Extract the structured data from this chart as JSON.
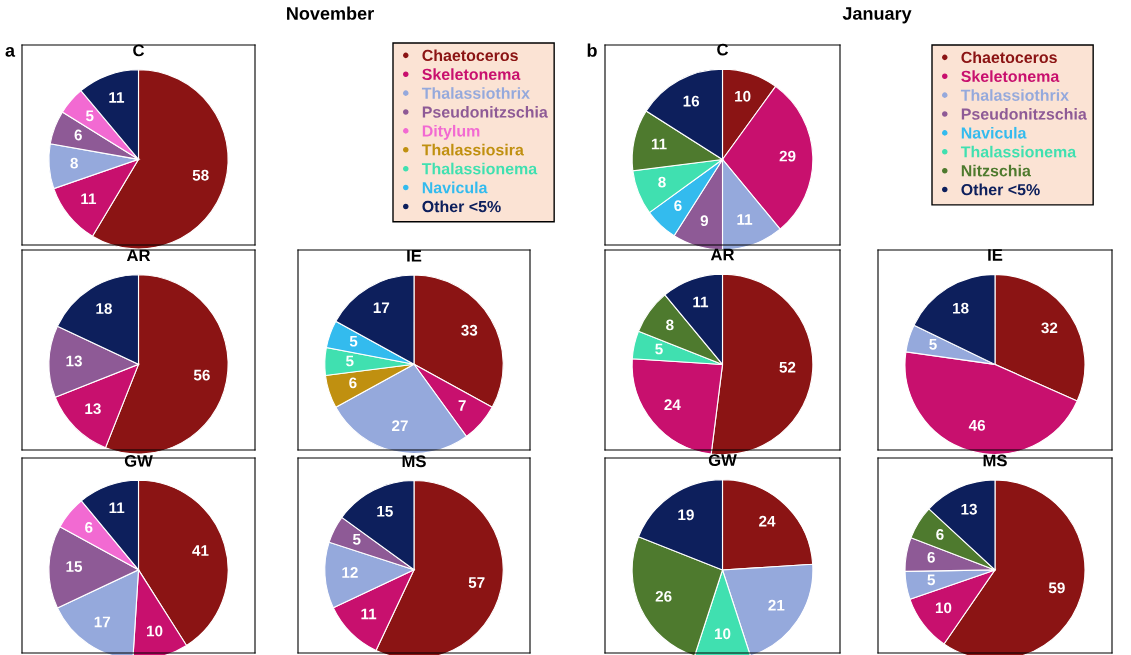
{
  "chart_data": [
    {
      "type": "pie",
      "title": "C",
      "annotations": [
        "a",
        "November"
      ],
      "legend": "right",
      "data_labels": true,
      "categories": [
        "Chaetoceros",
        "Skeletonema",
        "Thalassiothrix",
        "Pseudonitzschia",
        "Ditylum",
        "Thalassiosira",
        "Thalassionema",
        "Navicula",
        "Other <5%"
      ],
      "values": [
        58,
        11,
        8,
        6,
        5,
        null,
        null,
        null,
        11
      ],
      "colors": [
        "#8b1414",
        "#c8106e",
        "#95a9dc",
        "#8e5a96",
        "#f26ad2",
        "#c09010",
        "#40e0b0",
        "#33bbee",
        "#0d1f5c"
      ]
    },
    {
      "type": "pie",
      "title": "AR",
      "data_labels": true,
      "categories": [
        null,
        null,
        null,
        null
      ],
      "values": [
        56,
        13,
        13,
        18
      ],
      "colors": [
        "#8b1414",
        "#c8106e",
        "#8e5a96",
        "#0d1f5c"
      ]
    },
    {
      "type": "pie",
      "title": "IE",
      "data_labels": true,
      "categories": [
        null,
        null,
        null,
        null,
        null,
        null,
        null
      ],
      "values": [
        33,
        7,
        27,
        6,
        5,
        5,
        17
      ],
      "colors": [
        "#8b1414",
        "#c8106e",
        "#95a9dc",
        "#c09010",
        "#40e0b0",
        "#33bbee",
        "#0d1f5c"
      ]
    },
    {
      "type": "pie",
      "title": "GW",
      "data_labels": true,
      "categories": [
        null,
        null,
        null,
        null,
        null,
        null
      ],
      "values": [
        41,
        10,
        17,
        15,
        6,
        11
      ],
      "colors": [
        "#8b1414",
        "#c8106e",
        "#95a9dc",
        "#8e5a96",
        "#f26ad2",
        "#0d1f5c"
      ]
    },
    {
      "type": "pie",
      "title": "MS",
      "data_labels": true,
      "categories": [
        null,
        null,
        null,
        null,
        null
      ],
      "values": [
        57,
        11,
        12,
        5,
        15
      ],
      "colors": [
        "#8b1414",
        "#c8106e",
        "#95a9dc",
        "#8e5a96",
        "#0d1f5c"
      ]
    },
    {
      "type": "pie",
      "title": "C",
      "annotations": [
        "b",
        "January"
      ],
      "legend": "right",
      "data_labels": true,
      "categories": [
        "Chaetoceros",
        "Skeletonema",
        "Thalassiothrix",
        "Pseudonitzschia",
        "Navicula",
        "Thalassionema",
        "Nitzschia",
        "Other <5%"
      ],
      "values": [
        10,
        29,
        11,
        9,
        6,
        8,
        11,
        16
      ],
      "colors": [
        "#8b1414",
        "#c8106e",
        "#95a9dc",
        "#8e5a96",
        "#33bbee",
        "#40e0b0",
        "#4e7a2e",
        "#0d1f5c"
      ]
    },
    {
      "type": "pie",
      "title": "AR",
      "data_labels": true,
      "categories": [
        null,
        null,
        null,
        null,
        null
      ],
      "values": [
        52,
        24,
        5,
        8,
        11
      ],
      "colors": [
        "#8b1414",
        "#c8106e",
        "#40e0b0",
        "#4e7a2e",
        "#0d1f5c"
      ]
    },
    {
      "type": "pie",
      "title": "IE",
      "data_labels": true,
      "categories": [
        null,
        null,
        null,
        null
      ],
      "values": [
        32,
        46,
        5,
        18
      ],
      "colors": [
        "#8b1414",
        "#c8106e",
        "#95a9dc",
        "#0d1f5c"
      ]
    },
    {
      "type": "pie",
      "title": "GW",
      "data_labels": true,
      "categories": [
        null,
        null,
        null,
        null,
        null
      ],
      "values": [
        24,
        21,
        10,
        26,
        19
      ],
      "colors": [
        "#8b1414",
        "#95a9dc",
        "#40e0b0",
        "#4e7a2e",
        "#0d1f5c"
      ]
    },
    {
      "type": "pie",
      "title": "MS",
      "data_labels": true,
      "categories": [
        null,
        null,
        null,
        null,
        null,
        null
      ],
      "values": [
        59,
        10,
        5,
        6,
        6,
        13
      ],
      "colors": [
        "#8b1414",
        "#c8106e",
        "#95a9dc",
        "#8e5a96",
        "#4e7a2e",
        "#0d1f5c"
      ]
    }
  ]
}
